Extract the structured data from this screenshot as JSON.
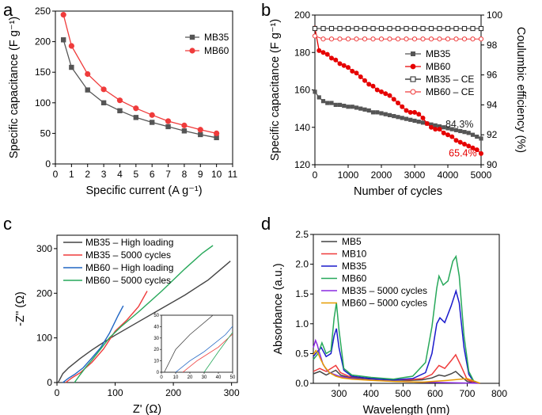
{
  "panel_letters": [
    "a",
    "b",
    "c",
    "d"
  ],
  "chart_data": [
    {
      "panel": "a",
      "type": "line",
      "xlabel": "Specific current (A g⁻¹)",
      "ylabel": "Specific capacitance (F g⁻¹)",
      "xlim": [
        0,
        11
      ],
      "ylim": [
        0,
        250
      ],
      "xticks": [
        0,
        1,
        2,
        3,
        4,
        5,
        6,
        7,
        8,
        9,
        10,
        11
      ],
      "yticks": [
        0,
        50,
        100,
        150,
        200,
        250
      ],
      "legend_position": "top-right",
      "series": [
        {
          "name": "MB35",
          "color": "#555555",
          "marker": "square",
          "x": [
            0.5,
            1,
            2,
            3,
            4,
            5,
            6,
            7,
            8,
            9,
            10
          ],
          "y": [
            203,
            158,
            121,
            100,
            87,
            76,
            68,
            61,
            54,
            48,
            43
          ]
        },
        {
          "name": "MB60",
          "color": "#ef3b3b",
          "marker": "circle",
          "x": [
            0.5,
            1,
            2,
            3,
            4,
            5,
            6,
            7,
            8,
            9,
            10
          ],
          "y": [
            244,
            193,
            147,
            122,
            104,
            91,
            80,
            70,
            63,
            56,
            50
          ]
        }
      ]
    },
    {
      "panel": "b",
      "type": "line",
      "xlabel": "Number of cycles",
      "ylabel": "Specific capacitance (F g⁻¹)",
      "y2label": "Coulumbic efficiency (%)",
      "xlim": [
        0,
        5000
      ],
      "ylim": [
        120,
        200
      ],
      "y2lim": [
        90,
        100
      ],
      "xticks": [
        0,
        1000,
        2000,
        3000,
        4000,
        5000
      ],
      "yticks": [
        120,
        140,
        160,
        180,
        200
      ],
      "y2ticks": [
        90,
        92,
        94,
        96,
        98,
        100
      ],
      "legend_position": "right",
      "annotations": [
        {
          "text": "84.3%",
          "color": "#222222",
          "x": 4350,
          "y": 140
        },
        {
          "text": "65.4%",
          "color": "#e60000",
          "x": 4450,
          "y": 124.5
        }
      ],
      "series": [
        {
          "name": "MB35",
          "color": "#555555",
          "marker": "square",
          "axis": "left",
          "x": [
            0,
            125,
            250,
            375,
            500,
            625,
            750,
            875,
            1000,
            1125,
            1250,
            1375,
            1500,
            1625,
            1750,
            1875,
            2000,
            2125,
            2250,
            2375,
            2500,
            2625,
            2750,
            2875,
            3000,
            3125,
            3250,
            3375,
            3500,
            3625,
            3750,
            3875,
            4000,
            4125,
            4250,
            4375,
            4500,
            4625,
            4750,
            4875,
            5000
          ],
          "y": [
            159,
            156,
            154,
            153,
            153,
            152,
            152,
            151.5,
            151,
            151,
            150.5,
            150,
            149.5,
            149,
            148,
            148,
            147.5,
            147,
            146.5,
            146,
            145.5,
            145,
            144.5,
            144,
            143.5,
            143,
            142.5,
            142,
            141.5,
            141,
            140.5,
            140,
            139.5,
            139,
            138.5,
            138,
            137.5,
            137,
            136,
            135,
            134
          ]
        },
        {
          "name": "MB60",
          "color": "#e60000",
          "marker": "circle",
          "axis": "left",
          "x": [
            0,
            125,
            250,
            375,
            500,
            625,
            750,
            875,
            1000,
            1125,
            1250,
            1375,
            1500,
            1625,
            1750,
            1875,
            2000,
            2125,
            2250,
            2375,
            2500,
            2625,
            2750,
            2875,
            3000,
            3125,
            3250,
            3375,
            3500,
            3625,
            3750,
            3875,
            4000,
            4125,
            4250,
            4375,
            4500,
            4625,
            4750,
            4875,
            5000
          ],
          "y": [
            193,
            181,
            180,
            179,
            177,
            176,
            174,
            173,
            172,
            170,
            169,
            167,
            165,
            163,
            162,
            160,
            159,
            158,
            157,
            155,
            153,
            151,
            149,
            148,
            148,
            147,
            145,
            142,
            140,
            139,
            139,
            137,
            136,
            135,
            133,
            132,
            131,
            130,
            129,
            128,
            126
          ]
        },
        {
          "name": "MB35 – CE",
          "color": "#222222",
          "marker": "open-square",
          "axis": "right",
          "x": [
            0,
            250,
            500,
            750,
            1000,
            1250,
            1500,
            1750,
            2000,
            2250,
            2500,
            2750,
            3000,
            3250,
            3500,
            3750,
            4000,
            4250,
            4500,
            4750,
            5000
          ],
          "y": [
            99.1,
            99.1,
            99.1,
            99.1,
            99.1,
            99.1,
            99.1,
            99.1,
            99.1,
            99.1,
            99.1,
            99.1,
            99.1,
            99.1,
            99.1,
            99.1,
            99.1,
            99.1,
            99.1,
            99.1,
            99.1
          ]
        },
        {
          "name": "MB60 – CE",
          "color": "#ef3b3b",
          "marker": "open-circle",
          "axis": "right",
          "x": [
            0,
            250,
            500,
            750,
            1000,
            1250,
            1500,
            1750,
            2000,
            2250,
            2500,
            2750,
            3000,
            3250,
            3500,
            3750,
            4000,
            4250,
            4500,
            4750,
            5000
          ],
          "y": [
            98.6,
            98.4,
            98.4,
            98.4,
            98.4,
            98.4,
            98.4,
            98.4,
            98.4,
            98.4,
            98.4,
            98.4,
            98.4,
            98.4,
            98.4,
            98.4,
            98.4,
            98.4,
            98.4,
            98.4,
            98.4
          ]
        }
      ]
    },
    {
      "panel": "c",
      "type": "line",
      "xlabel": "Z' (Ω)",
      "ylabel": "-Z'' (Ω)",
      "xlim": [
        0,
        310
      ],
      "ylim": [
        0,
        330
      ],
      "xticks": [
        0,
        100,
        200,
        300
      ],
      "yticks": [
        0,
        100,
        200,
        300
      ],
      "legend_position": "top-left",
      "inset": {
        "xlim": [
          0,
          50
        ],
        "ylim": [
          0,
          50
        ],
        "xticks": [
          0,
          10,
          20,
          30,
          40,
          50
        ],
        "yticks": [
          0,
          10,
          20,
          30,
          40,
          50
        ]
      },
      "series": [
        {
          "name": "MB35 – High loading",
          "color": "#444444",
          "x": [
            2,
            10,
            20,
            40,
            60,
            80,
            100,
            140,
            180,
            220,
            260,
            298
          ],
          "y": [
            0,
            20,
            33,
            54,
            73,
            90,
            106,
            136,
            166,
            196,
            230,
            272
          ]
        },
        {
          "name": "MB35 – 5000 cycles",
          "color": "#ef3b3b",
          "x": [
            15,
            25,
            40,
            60,
            80,
            100,
            120,
            140,
            155
          ],
          "y": [
            0,
            10,
            22,
            45,
            75,
            115,
            140,
            170,
            205
          ]
        },
        {
          "name": "MB60 – High loading",
          "color": "#2166c4",
          "x": [
            10,
            20,
            30,
            45,
            60,
            75,
            90,
            105,
            114
          ],
          "y": [
            0,
            10,
            18,
            33,
            55,
            78,
            110,
            150,
            172
          ]
        },
        {
          "name": "MB60 – 5000 cycles",
          "color": "#27a85a",
          "x": [
            30,
            40,
            50,
            60,
            75,
            90,
            110,
            140,
            180,
            220,
            250,
            268
          ],
          "y": [
            0,
            18,
            35,
            50,
            75,
            100,
            125,
            158,
            205,
            255,
            290,
            307
          ]
        }
      ]
    },
    {
      "panel": "d",
      "type": "line",
      "xlabel": "Wavelength (nm)",
      "ylabel": "Absorbance (a.u.)",
      "xlim": [
        220,
        800
      ],
      "ylim": [
        0,
        2.5
      ],
      "xticks": [
        300,
        400,
        500,
        600,
        700,
        800
      ],
      "yticks": [
        0.0,
        0.5,
        1.0,
        1.5,
        2.0,
        2.5
      ],
      "legend_position": "top-left",
      "series": [
        {
          "name": "MB5",
          "color": "#444444",
          "x": [
            220,
            240,
            260,
            275,
            290,
            305,
            330,
            380,
            450,
            520,
            560,
            590,
            612,
            630,
            650,
            664,
            680,
            700,
            720,
            740
          ],
          "y": [
            0.16,
            0.2,
            0.14,
            0.18,
            0.22,
            0.14,
            0.1,
            0.08,
            0.06,
            0.05,
            0.06,
            0.09,
            0.14,
            0.12,
            0.16,
            0.2,
            0.12,
            0.03,
            0.01,
            0.0
          ]
        },
        {
          "name": "MB10",
          "color": "#ef3b3b",
          "x": [
            220,
            240,
            260,
            275,
            290,
            305,
            330,
            380,
            450,
            520,
            560,
            590,
            612,
            630,
            650,
            664,
            680,
            700,
            720,
            740
          ],
          "y": [
            0.2,
            0.25,
            0.2,
            0.25,
            0.3,
            0.18,
            0.12,
            0.09,
            0.07,
            0.06,
            0.08,
            0.15,
            0.3,
            0.25,
            0.38,
            0.48,
            0.3,
            0.06,
            0.02,
            0.0
          ]
        },
        {
          "name": "MB35",
          "color": "#1a1acc",
          "x": [
            220,
            235,
            245,
            260,
            275,
            285,
            292,
            300,
            315,
            340,
            400,
            470,
            530,
            570,
            590,
            605,
            615,
            630,
            650,
            665,
            675,
            690,
            705,
            720,
            740
          ],
          "y": [
            0.45,
            0.55,
            0.6,
            0.45,
            0.5,
            0.8,
            0.92,
            0.6,
            0.22,
            0.12,
            0.08,
            0.06,
            0.08,
            0.18,
            0.5,
            1.0,
            1.1,
            1.02,
            1.3,
            1.55,
            1.35,
            0.6,
            0.15,
            0.03,
            0.0
          ]
        },
        {
          "name": "MB60",
          "color": "#27a85a",
          "x": [
            220,
            235,
            247,
            260,
            275,
            285,
            292,
            300,
            315,
            340,
            400,
            470,
            530,
            570,
            590,
            605,
            612,
            625,
            640,
            655,
            665,
            675,
            690,
            705,
            720,
            740
          ],
          "y": [
            0.4,
            0.5,
            0.68,
            0.5,
            0.55,
            1.1,
            1.35,
            0.9,
            0.25,
            0.14,
            0.1,
            0.07,
            0.12,
            0.35,
            0.95,
            1.6,
            1.8,
            1.65,
            1.72,
            2.05,
            2.13,
            1.8,
            0.8,
            0.2,
            0.04,
            0.0
          ]
        },
        {
          "name": "MB35 – 5000 cycles",
          "color": "#8a2be2",
          "x": [
            220,
            227,
            232,
            240,
            250,
            265,
            280,
            300,
            330,
            380,
            450,
            550,
            650,
            740
          ],
          "y": [
            0.6,
            0.72,
            0.65,
            0.5,
            0.32,
            0.2,
            0.16,
            0.12,
            0.09,
            0.06,
            0.04,
            0.02,
            0.01,
            0.0
          ]
        },
        {
          "name": "MB60 – 5000 cycles",
          "color": "#e69b00",
          "x": [
            220,
            228,
            235,
            245,
            255,
            270,
            290,
            310,
            340,
            400,
            480,
            560,
            640,
            700,
            740
          ],
          "y": [
            0.48,
            0.55,
            0.5,
            0.38,
            0.28,
            0.18,
            0.12,
            0.09,
            0.07,
            0.05,
            0.03,
            0.02,
            0.05,
            0.08,
            0.0
          ]
        }
      ]
    }
  ]
}
